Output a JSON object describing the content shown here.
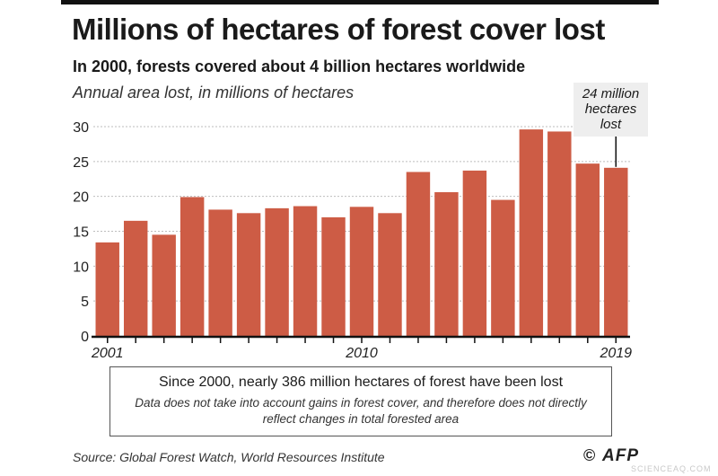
{
  "header": {
    "title": "Millions of hectares of forest cover lost",
    "subtitle": "In 2000, forests covered about 4 billion hectares worldwide"
  },
  "chart_data": {
    "type": "bar",
    "title": "Millions of hectares of forest cover lost",
    "ylabel": "Annual area lost, in millions of hectares",
    "xlabel": "",
    "categories": [
      2001,
      2002,
      2003,
      2004,
      2005,
      2006,
      2007,
      2008,
      2009,
      2010,
      2011,
      2012,
      2013,
      2014,
      2015,
      2016,
      2017,
      2018,
      2019
    ],
    "x_tick_labels": [
      {
        "category": 2001,
        "label": "2001"
      },
      {
        "category": 2010,
        "label": "2010"
      },
      {
        "category": 2019,
        "label": "2019"
      }
    ],
    "values": [
      13.4,
      16.5,
      14.5,
      19.9,
      18.1,
      17.6,
      18.3,
      18.6,
      17.0,
      18.5,
      17.6,
      23.5,
      20.6,
      23.7,
      19.5,
      29.6,
      29.3,
      24.7,
      24.1
    ],
    "yticks": [
      0,
      5,
      10,
      15,
      20,
      25,
      30
    ],
    "ylim": [
      0,
      32
    ],
    "grid": true,
    "bar_color": "#cd5c45",
    "annotation": {
      "category": 2019,
      "text": "24 million hectares lost"
    }
  },
  "note": {
    "main": "Since 2000, nearly 386 million hectares of forest have been lost",
    "sub": "Data does not take into account gains in forest cover, and therefore does not directly reflect changes in total forested area"
  },
  "footer": {
    "source": "Source: Global Forest Watch, World Resources Institute",
    "copyright": "©",
    "logo": "AFP",
    "watermark": "SCIENCEAQ.COM"
  }
}
